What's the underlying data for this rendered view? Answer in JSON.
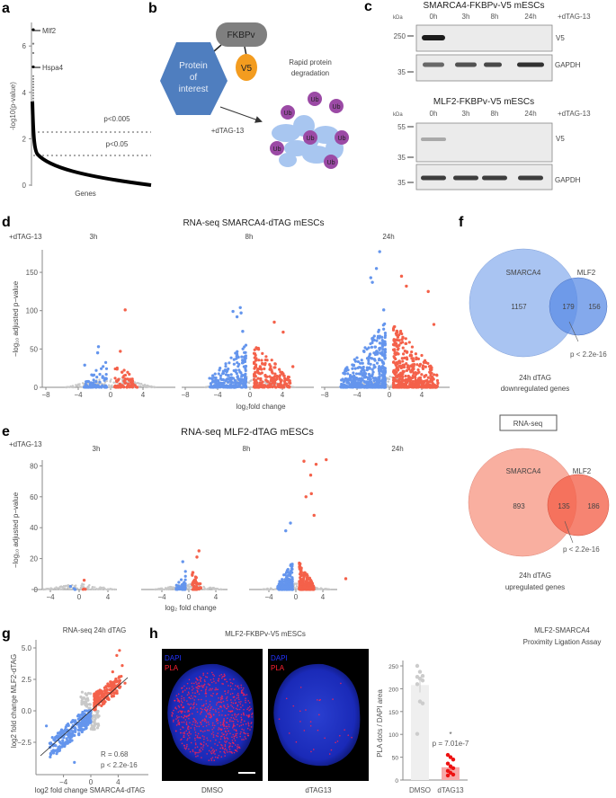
{
  "panels": {
    "a": {
      "label": "a",
      "ylabel": "-log10(p-value)",
      "xlabel": "Genes",
      "yticks": [
        "0",
        "2",
        "4",
        "6"
      ],
      "hit1": "Mlf2",
      "hit2": "Hspa4",
      "thr1": "p<0.005",
      "thr2": "p<0.05"
    },
    "b": {
      "label": "b",
      "fkbp": "FKBPv",
      "v5": "V5",
      "poi": [
        "Protein",
        "of",
        "interest"
      ],
      "rapid": [
        "Rapid protein",
        "degradation"
      ],
      "treat": "+dTAG-13",
      "ub": "Ub"
    },
    "c": {
      "label": "c",
      "title1": "SMARCA4-FKBPv-V5 mESCs",
      "title2": "MLF2-FKBPv-V5 mESCs",
      "kda": "kDa",
      "lanes": [
        "0h",
        "3h",
        "8h",
        "24h"
      ],
      "treat": "+dTAG-13",
      "v5": "V5",
      "gapdh": "GAPDH",
      "m250": "250",
      "m35": "35",
      "m55": "55"
    },
    "d": {
      "label": "d",
      "title": "RNA-seq SMARCA4-dTAG mESCs",
      "treat": "+dTAG-13",
      "times": [
        "3h",
        "8h",
        "24h"
      ],
      "ylabel": "−log₁₀ adjusted p−value",
      "xlabel": "log₂fold change",
      "yticks": [
        "0",
        "50",
        "100",
        "150"
      ],
      "xticks": [
        "−8",
        "−4",
        "0",
        "4"
      ]
    },
    "e": {
      "label": "e",
      "title": "RNA-seq MLF2-dTAG mESCs",
      "treat": "+dTAG-13",
      "times": [
        "3h",
        "8h",
        "24h"
      ],
      "ylabel": "−log₁₀ adjusted p−value",
      "xlabel": "log₂ fold change",
      "yticks": [
        "0",
        "20",
        "40",
        "60",
        "80"
      ],
      "xticks": [
        "−4",
        "0",
        "4"
      ]
    },
    "f": {
      "label": "f",
      "a": "SMARCA4",
      "b": "MLF2",
      "down": {
        "only_a": "1157",
        "both": "179",
        "only_b": "156",
        "p": "p < 2.2e-16",
        "cap1": "24h dTAG",
        "cap2": "downregulated genes"
      },
      "box": "RNA-seq",
      "up": {
        "only_a": "893",
        "both": "135",
        "only_b": "186",
        "p": "p < 2.2e-16",
        "cap1": "24h dTAG",
        "cap2": "upregulated genes"
      }
    },
    "g": {
      "label": "g",
      "title": "RNA-seq 24h dTAG",
      "ylabel": "log2 fold change MLF2-dTAG",
      "xlabel": "log2 fold change SMARCA4-dTAG",
      "yticks": [
        "5.0",
        "2.5",
        "0.0",
        "−2.5"
      ],
      "xticks": [
        "−4",
        "0",
        "4"
      ],
      "r": "R = 0.68",
      "p": "p < 2.2e-16"
    },
    "h": {
      "label": "h",
      "title": "MLF2-FKBPv-V5 mESCs",
      "dapi": "DAPI",
      "pla": "PLA",
      "cond1": "DMSO",
      "cond2": "dTAG13",
      "bar_title1": "MLF2-SMARCA4",
      "bar_title2": "Proximity Ligation Assay",
      "bar_ylabel": "PLA dots / DAPI area",
      "bar_yticks": [
        "0",
        "50",
        "100",
        "150",
        "200",
        "250"
      ],
      "star": "*",
      "p": "p = 7.01e-7"
    }
  },
  "colors": {
    "down": "#6495ED",
    "up": "#F4614A",
    "ns": "#C8C8C8",
    "hit": "#E8392B",
    "hex": "#4F7EBF",
    "fkbp": "#7F7F7F",
    "v5": "#F39C1F",
    "ub": "#9B4AA5",
    "blob": "#A8C6F0"
  },
  "chart_data": [
    {
      "type": "line",
      "id": "a",
      "ylabel": "-log10(p-value)",
      "xlabel": "Genes",
      "ylim": [
        0,
        7
      ],
      "top_points": [
        {
          "gene": "Mlf2",
          "y": 6.7
        },
        {
          "y": 6.1
        },
        {
          "y": 5.7
        },
        {
          "gene": "Hspa4",
          "y": 5.1
        }
      ],
      "thresholds": [
        {
          "label": "p<0.005",
          "y": 2.3
        },
        {
          "label": "p<0.05",
          "y": 1.3
        }
      ]
    },
    {
      "type": "scatter",
      "id": "d-3h",
      "ylim": [
        0,
        180
      ],
      "xlim": [
        -8,
        6
      ],
      "outliers": [
        [
          1.8,
          101
        ],
        [
          -1.5,
          53
        ],
        [
          -1.6,
          45
        ],
        [
          1.2,
          47
        ],
        [
          -3.2,
          29
        ]
      ]
    },
    {
      "type": "scatter",
      "id": "d-8h",
      "ylim": [
        0,
        180
      ],
      "xlim": [
        -8,
        7
      ],
      "outliers": [
        [
          -1.2,
          104
        ],
        [
          -2.1,
          99
        ],
        [
          -1.1,
          97
        ],
        [
          -1.6,
          92
        ],
        [
          3,
          85
        ],
        [
          4.1,
          72
        ],
        [
          -0.9,
          73
        ],
        [
          5.3,
          27
        ]
      ]
    },
    {
      "type": "scatter",
      "id": "d-24h",
      "ylim": [
        0,
        180
      ],
      "xlim": [
        -8,
        7
      ],
      "outliers": [
        [
          -1.2,
          177
        ],
        [
          -1.6,
          155
        ],
        [
          -2.3,
          143
        ],
        [
          -2.1,
          137
        ],
        [
          1.5,
          145
        ],
        [
          2.1,
          132
        ],
        [
          4.8,
          125
        ],
        [
          -0.7,
          101
        ],
        [
          5.5,
          82
        ]
      ]
    },
    {
      "type": "scatter",
      "id": "e-3h",
      "ylim": [
        0,
        90
      ],
      "xlim": [
        -5,
        5
      ],
      "outliers": [
        [
          0.7,
          6
        ],
        [
          -1.2,
          2
        ]
      ]
    },
    {
      "type": "scatter",
      "id": "e-8h",
      "ylim": [
        0,
        90
      ],
      "xlim": [
        -5,
        5
      ],
      "outliers": [
        [
          1.5,
          25
        ],
        [
          -0.9,
          18
        ],
        [
          1.2,
          21
        ]
      ]
    },
    {
      "type": "scatter",
      "id": "e-24h",
      "ylim": [
        0,
        90
      ],
      "xlim": [
        -5,
        8
      ],
      "outliers": [
        [
          1.2,
          83
        ],
        [
          4.5,
          84
        ],
        [
          3.0,
          81
        ],
        [
          2.2,
          74
        ],
        [
          2.3,
          62
        ],
        [
          1.5,
          60
        ],
        [
          2.7,
          48
        ],
        [
          -0.8,
          43
        ],
        [
          -1.5,
          38
        ],
        [
          7.4,
          7
        ]
      ]
    },
    {
      "type": "scatter",
      "id": "g",
      "title": "RNA-seq 24h dTAG",
      "xlabel": "log2 fold change SMARCA4-dTAG",
      "ylabel": "log2 fold change MLF2-dTAG",
      "xlim": [
        -7.5,
        5.5
      ],
      "ylim": [
        -4.5,
        5.3
      ],
      "fit": {
        "r": 0.68,
        "from": [
          -7,
          -3.1
        ],
        "to": [
          5,
          2.3
        ]
      }
    },
    {
      "type": "bar",
      "id": "h-pla",
      "categories": [
        "DMSO",
        "dTAG13"
      ],
      "values": [
        208,
        28
      ],
      "errors": [
        16,
        6
      ],
      "ylim": [
        0,
        260
      ],
      "ylabel": "PLA dots / DAPI area",
      "points": [
        [
          250,
          237,
          228,
          226,
          222,
          218,
          210,
          172,
          168,
          101
        ],
        [
          55,
          50,
          45,
          36,
          30,
          26,
          20,
          16,
          12,
          10
        ]
      ]
    }
  ]
}
